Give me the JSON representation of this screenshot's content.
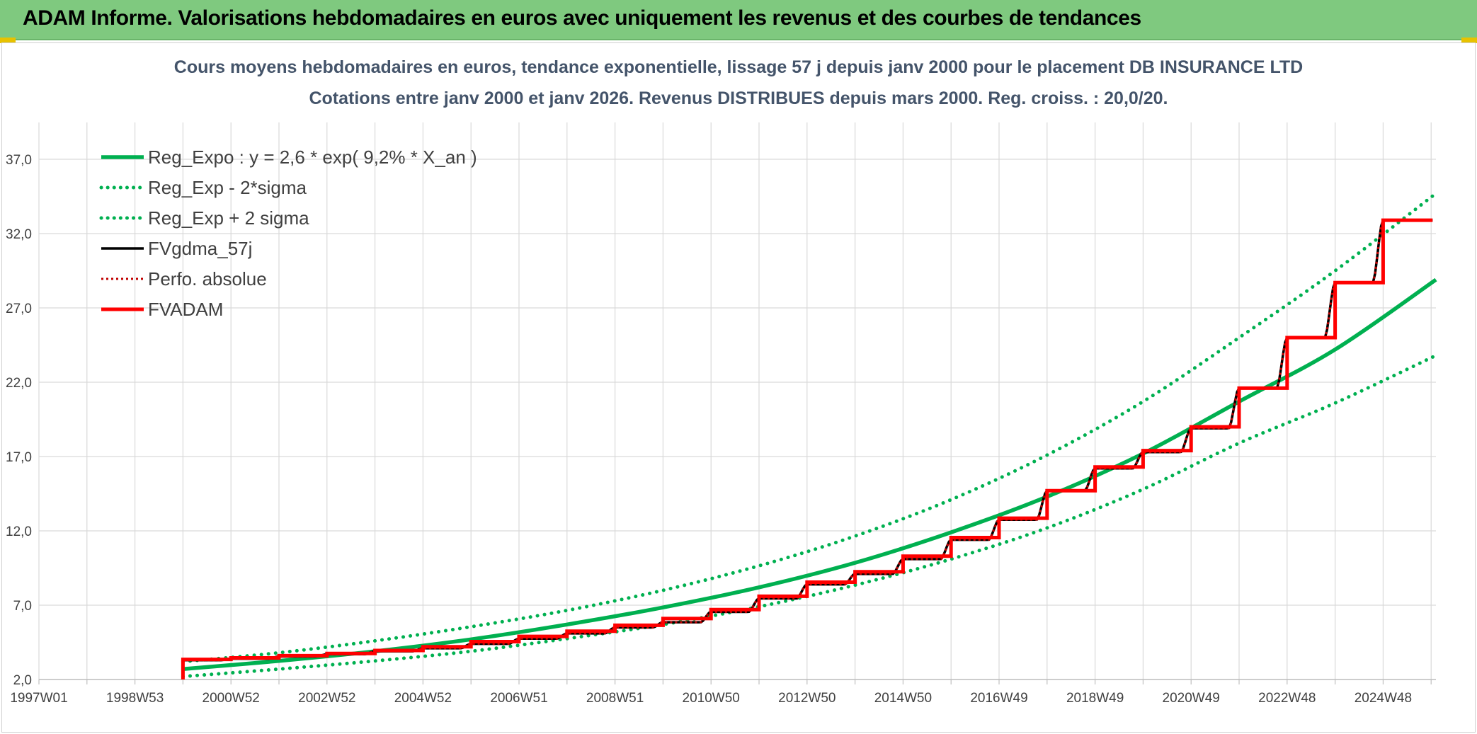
{
  "banner": {
    "title": "ADAM Informe. Valorisations hebdomadaires en euros avec uniquement les revenus et des courbes de tendances",
    "color": "#7fc97f"
  },
  "chart_data": {
    "type": "line",
    "title": "Cours moyens hebdomadaires en euros, tendance exponentielle, lissage 57 j depuis janv 2000 pour le placement DB INSURANCE LTD",
    "subtitle": "Cotations entre janv 2000 et janv 2026. Revenus DISTRIBUES depuis mars 2000. Reg. croiss. : 20,0/20.",
    "xlabel": "",
    "ylabel": "",
    "x_range": [
      1997.0,
      2026.1
    ],
    "ylim": [
      2.0,
      39.0
    ],
    "y_ticks": [
      "2,0",
      "7,0",
      "12,0",
      "17,0",
      "22,0",
      "27,0",
      "32,0",
      "37,0"
    ],
    "x_ticks": [
      "1997W01",
      "1998W53",
      "2000W52",
      "2002W52",
      "2004W52",
      "2006W51",
      "2008W51",
      "2010W50",
      "2012W50",
      "2014W50",
      "2016W49",
      "2018W49",
      "2020W49",
      "2022W48",
      "2024W48"
    ],
    "grid": true,
    "legend_position": "top-left",
    "series": [
      {
        "name": "Reg_Expo : y = 2,6 * exp( 9,2% *  X_an )",
        "style": "solid",
        "color": "#00b050",
        "x": [
          2000.0,
          2002.0,
          2004.0,
          2006.0,
          2008.0,
          2010.0,
          2012.0,
          2014.0,
          2016.0,
          2018.0,
          2020.0,
          2022.0,
          2024.0,
          2026.1
        ],
        "values": [
          2.7,
          3.25,
          3.9,
          4.7,
          5.7,
          6.85,
          8.2,
          9.85,
          11.9,
          14.3,
          17.2,
          20.7,
          24.2,
          28.9
        ]
      },
      {
        "name": "Reg_Exp - 2*sigma",
        "style": "dotted",
        "color": "#00b050",
        "x": [
          2000.0,
          2002.0,
          2004.0,
          2006.0,
          2008.0,
          2010.0,
          2012.0,
          2014.0,
          2016.0,
          2018.0,
          2020.0,
          2022.0,
          2024.0,
          2026.1
        ],
        "values": [
          2.2,
          2.7,
          3.25,
          3.9,
          4.75,
          5.7,
          6.9,
          8.35,
          10.1,
          12.2,
          14.8,
          17.9,
          20.6,
          23.8
        ]
      },
      {
        "name": "Reg_Exp + 2 sigma",
        "style": "dotted",
        "color": "#00b050",
        "x": [
          2000.0,
          2002.0,
          2004.0,
          2006.0,
          2008.0,
          2010.0,
          2012.0,
          2014.0,
          2016.0,
          2018.0,
          2020.0,
          2022.0,
          2024.0,
          2026.1
        ],
        "values": [
          3.2,
          3.8,
          4.6,
          5.55,
          6.65,
          8.0,
          9.65,
          11.65,
          14.1,
          17.1,
          20.7,
          25.0,
          29.5,
          34.7
        ]
      },
      {
        "name": "FVgdma_57j",
        "style": "solid-smooth",
        "color": "#000000",
        "x": [
          2000.0,
          2001.0,
          2002.0,
          2003.0,
          2004.0,
          2005.0,
          2006.0,
          2007.0,
          2008.0,
          2009.0,
          2010.0,
          2011.0,
          2012.0,
          2013.0,
          2014.0,
          2015.0,
          2016.0,
          2017.0,
          2018.0,
          2019.0,
          2020.0,
          2021.0,
          2022.0,
          2023.0,
          2024.0,
          2025.0
        ],
        "values": [
          3.3,
          3.4,
          3.55,
          3.7,
          3.9,
          4.1,
          4.4,
          4.75,
          5.1,
          5.5,
          5.85,
          6.55,
          7.45,
          8.4,
          9.1,
          10.1,
          11.4,
          12.75,
          14.7,
          16.2,
          17.3,
          18.9,
          21.6,
          25.0,
          28.7,
          32.9
        ]
      },
      {
        "name": "Perfo. absolue",
        "style": "dotted",
        "color": "#c00000",
        "x": [
          2000.0,
          2001.0,
          2002.0,
          2003.0,
          2004.0,
          2005.0,
          2006.0,
          2007.0,
          2008.0,
          2009.0,
          2010.0,
          2011.0,
          2012.0,
          2013.0,
          2014.0,
          2015.0,
          2016.0,
          2017.0,
          2018.0,
          2019.0,
          2020.0,
          2021.0,
          2022.0,
          2023.0,
          2024.0,
          2025.0
        ],
        "values": [
          3.3,
          3.4,
          3.55,
          3.7,
          3.9,
          4.1,
          4.4,
          4.75,
          5.1,
          5.5,
          5.85,
          6.55,
          7.45,
          8.4,
          9.1,
          10.1,
          11.4,
          12.75,
          14.7,
          16.2,
          17.3,
          18.9,
          21.6,
          25.0,
          28.7,
          32.9
        ]
      },
      {
        "name": "FVADAM",
        "style": "solid-step",
        "color": "#ff0000",
        "x": [
          2000.0,
          2001.0,
          2002.0,
          2003.0,
          2004.0,
          2005.0,
          2006.0,
          2007.0,
          2008.0,
          2009.0,
          2010.0,
          2011.0,
          2012.0,
          2013.0,
          2014.0,
          2015.0,
          2016.0,
          2017.0,
          2018.0,
          2019.0,
          2020.0,
          2021.0,
          2022.0,
          2023.0,
          2024.0,
          2025.0
        ],
        "values": [
          3.35,
          3.45,
          3.6,
          3.75,
          3.95,
          4.2,
          4.55,
          4.9,
          5.25,
          5.65,
          6.1,
          6.7,
          7.6,
          8.55,
          9.25,
          10.3,
          11.55,
          12.85,
          14.7,
          16.3,
          17.4,
          19.0,
          21.6,
          25.0,
          28.7,
          32.9
        ],
        "start_value": 2.0
      }
    ]
  }
}
